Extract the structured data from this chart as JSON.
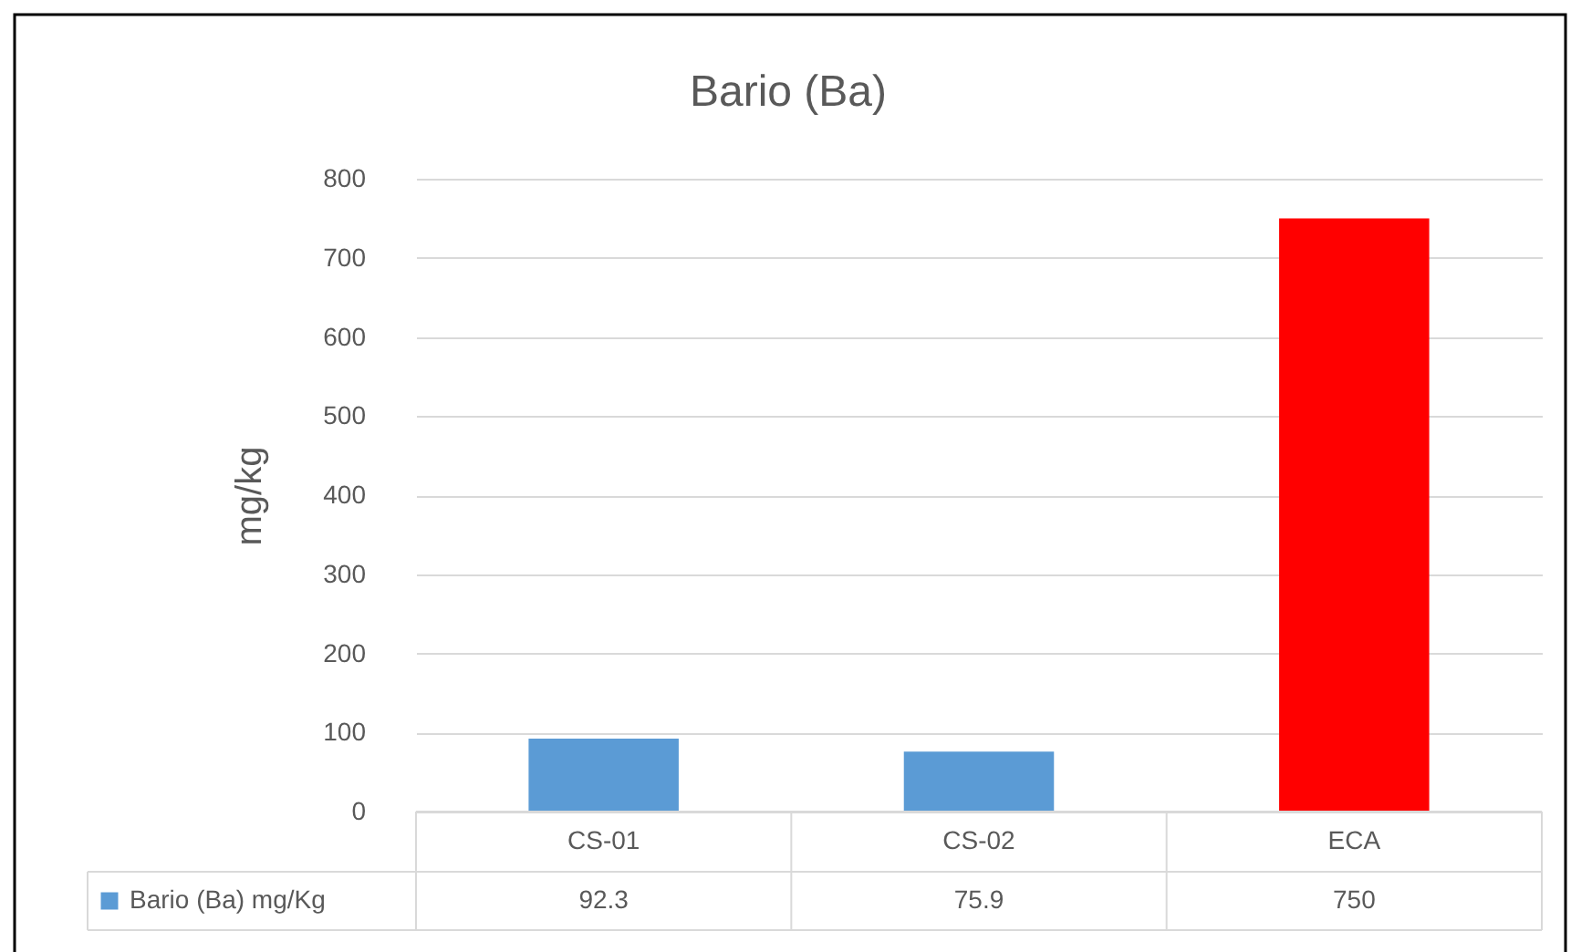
{
  "chart_data": {
    "type": "bar",
    "title": "Bario (Ba)",
    "ylabel": "mg/kg",
    "categories": [
      "CS-01",
      "CS-02",
      "ECA"
    ],
    "series": [
      {
        "name": "Bario (Ba) mg/Kg",
        "color": "#5b9bd5",
        "values": [
          92.3,
          75.9,
          750
        ],
        "colors": [
          "#5b9bd5",
          "#5b9bd5",
          "#ff0000"
        ]
      }
    ],
    "ylim": [
      0,
      800
    ],
    "yticks": [
      0,
      100,
      200,
      300,
      400,
      500,
      600,
      700,
      800
    ],
    "grid": "y",
    "data_labels": true,
    "legend": "bottom"
  }
}
